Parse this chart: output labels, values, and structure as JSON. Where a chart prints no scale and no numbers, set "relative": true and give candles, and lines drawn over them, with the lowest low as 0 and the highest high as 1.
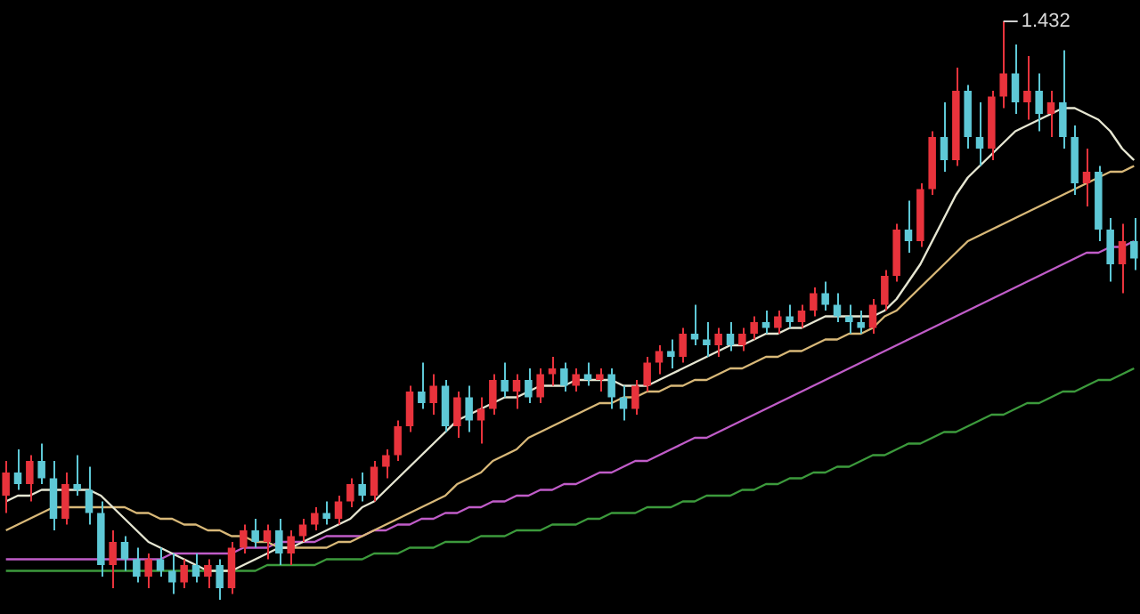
{
  "chart_data": {
    "type": "candlestick",
    "relative": true,
    "legend": false,
    "marker": "none",
    "categories": [
      null,
      null,
      null,
      null,
      null,
      null,
      null,
      null,
      null,
      null,
      null,
      null,
      null,
      null,
      null,
      null,
      null,
      null,
      null,
      null,
      null,
      null,
      null,
      null,
      null,
      null,
      null,
      null,
      null,
      null,
      null,
      null,
      null,
      null,
      null,
      null,
      null,
      null,
      null,
      null,
      null,
      null,
      null,
      null,
      null,
      null,
      null,
      null,
      null,
      null,
      null,
      null,
      null,
      null,
      null,
      null,
      null,
      null,
      null,
      null,
      null,
      null,
      null,
      null,
      null,
      null,
      null,
      null,
      null,
      null,
      null,
      null,
      null,
      null,
      null,
      null,
      null,
      null,
      null,
      null,
      null,
      null,
      null,
      null,
      null,
      null,
      null,
      null,
      null,
      null,
      null,
      null,
      null,
      null,
      null,
      null
    ],
    "ohlc": [
      [
        0.18,
        0.24,
        0.15,
        0.22
      ],
      [
        0.22,
        0.26,
        0.19,
        0.2
      ],
      [
        0.2,
        0.25,
        0.17,
        0.24
      ],
      [
        0.24,
        0.27,
        0.2,
        0.21
      ],
      [
        0.21,
        0.24,
        0.12,
        0.14
      ],
      [
        0.14,
        0.22,
        0.13,
        0.2
      ],
      [
        0.2,
        0.25,
        0.18,
        0.19
      ],
      [
        0.19,
        0.23,
        0.13,
        0.15
      ],
      [
        0.15,
        0.17,
        0.04,
        0.06
      ],
      [
        0.06,
        0.12,
        0.02,
        0.1
      ],
      [
        0.1,
        0.11,
        0.05,
        0.07
      ],
      [
        0.07,
        0.09,
        0.03,
        0.04
      ],
      [
        0.04,
        0.08,
        0.02,
        0.07
      ],
      [
        0.07,
        0.09,
        0.04,
        0.05
      ],
      [
        0.05,
        0.08,
        0.01,
        0.03
      ],
      [
        0.03,
        0.07,
        0.02,
        0.06
      ],
      [
        0.06,
        0.08,
        0.03,
        0.04
      ],
      [
        0.04,
        0.07,
        0.02,
        0.06
      ],
      [
        0.06,
        0.07,
        0.0,
        0.02
      ],
      [
        0.02,
        0.1,
        0.01,
        0.09
      ],
      [
        0.09,
        0.13,
        0.08,
        0.12
      ],
      [
        0.12,
        0.14,
        0.09,
        0.1
      ],
      [
        0.1,
        0.13,
        0.07,
        0.12
      ],
      [
        0.12,
        0.14,
        0.06,
        0.08
      ],
      [
        0.08,
        0.12,
        0.06,
        0.11
      ],
      [
        0.11,
        0.14,
        0.1,
        0.13
      ],
      [
        0.13,
        0.16,
        0.12,
        0.15
      ],
      [
        0.15,
        0.17,
        0.13,
        0.14
      ],
      [
        0.14,
        0.18,
        0.13,
        0.17
      ],
      [
        0.17,
        0.21,
        0.16,
        0.2
      ],
      [
        0.2,
        0.22,
        0.17,
        0.18
      ],
      [
        0.18,
        0.24,
        0.17,
        0.23
      ],
      [
        0.23,
        0.26,
        0.21,
        0.25
      ],
      [
        0.25,
        0.31,
        0.24,
        0.3
      ],
      [
        0.3,
        0.37,
        0.29,
        0.36
      ],
      [
        0.36,
        0.41,
        0.33,
        0.34
      ],
      [
        0.34,
        0.39,
        0.32,
        0.37
      ],
      [
        0.37,
        0.38,
        0.29,
        0.3
      ],
      [
        0.3,
        0.36,
        0.28,
        0.35
      ],
      [
        0.35,
        0.37,
        0.29,
        0.31
      ],
      [
        0.31,
        0.35,
        0.27,
        0.33
      ],
      [
        0.33,
        0.39,
        0.32,
        0.38
      ],
      [
        0.38,
        0.41,
        0.35,
        0.36
      ],
      [
        0.36,
        0.39,
        0.33,
        0.38
      ],
      [
        0.38,
        0.4,
        0.34,
        0.35
      ],
      [
        0.35,
        0.4,
        0.34,
        0.39
      ],
      [
        0.39,
        0.42,
        0.37,
        0.4
      ],
      [
        0.4,
        0.41,
        0.36,
        0.37
      ],
      [
        0.37,
        0.4,
        0.36,
        0.39
      ],
      [
        0.39,
        0.41,
        0.37,
        0.38
      ],
      [
        0.38,
        0.4,
        0.36,
        0.39
      ],
      [
        0.39,
        0.4,
        0.33,
        0.35
      ],
      [
        0.35,
        0.37,
        0.31,
        0.33
      ],
      [
        0.33,
        0.38,
        0.32,
        0.37
      ],
      [
        0.37,
        0.42,
        0.36,
        0.41
      ],
      [
        0.41,
        0.44,
        0.39,
        0.43
      ],
      [
        0.43,
        0.45,
        0.4,
        0.42
      ],
      [
        0.42,
        0.47,
        0.41,
        0.46
      ],
      [
        0.46,
        0.51,
        0.44,
        0.45
      ],
      [
        0.45,
        0.48,
        0.42,
        0.44
      ],
      [
        0.44,
        0.47,
        0.42,
        0.46
      ],
      [
        0.46,
        0.48,
        0.43,
        0.44
      ],
      [
        0.44,
        0.47,
        0.43,
        0.46
      ],
      [
        0.46,
        0.49,
        0.45,
        0.48
      ],
      [
        0.48,
        0.5,
        0.46,
        0.47
      ],
      [
        0.47,
        0.5,
        0.46,
        0.49
      ],
      [
        0.49,
        0.51,
        0.47,
        0.48
      ],
      [
        0.48,
        0.51,
        0.47,
        0.5
      ],
      [
        0.5,
        0.54,
        0.49,
        0.53
      ],
      [
        0.53,
        0.55,
        0.5,
        0.51
      ],
      [
        0.51,
        0.53,
        0.48,
        0.49
      ],
      [
        0.49,
        0.51,
        0.46,
        0.48
      ],
      [
        0.48,
        0.5,
        0.46,
        0.47
      ],
      [
        0.47,
        0.52,
        0.46,
        0.51
      ],
      [
        0.51,
        0.57,
        0.5,
        0.56
      ],
      [
        0.56,
        0.65,
        0.55,
        0.64
      ],
      [
        0.64,
        0.69,
        0.6,
        0.62
      ],
      [
        0.62,
        0.72,
        0.61,
        0.71
      ],
      [
        0.71,
        0.81,
        0.7,
        0.8
      ],
      [
        0.8,
        0.86,
        0.74,
        0.76
      ],
      [
        0.76,
        0.92,
        0.75,
        0.88
      ],
      [
        0.88,
        0.89,
        0.78,
        0.8
      ],
      [
        0.8,
        0.86,
        0.75,
        0.78
      ],
      [
        0.78,
        0.88,
        0.76,
        0.87
      ],
      [
        0.87,
        1.0,
        0.85,
        0.91
      ],
      [
        0.91,
        0.96,
        0.84,
        0.86
      ],
      [
        0.86,
        0.94,
        0.83,
        0.88
      ],
      [
        0.88,
        0.91,
        0.81,
        0.84
      ],
      [
        0.84,
        0.88,
        0.8,
        0.86
      ],
      [
        0.86,
        0.95,
        0.78,
        0.8
      ],
      [
        0.8,
        0.82,
        0.7,
        0.72
      ],
      [
        0.72,
        0.78,
        0.68,
        0.74
      ],
      [
        0.74,
        0.75,
        0.62,
        0.64
      ],
      [
        0.64,
        0.66,
        0.55,
        0.58
      ],
      [
        0.58,
        0.65,
        0.53,
        0.62
      ],
      [
        0.62,
        0.66,
        0.57,
        0.59
      ]
    ],
    "colors": [
      "#e8333c",
      "#5ec8d6",
      "#e8333c",
      "#5ec8d6",
      "#5ec8d6",
      "#e8333c",
      "#5ec8d6",
      "#5ec8d6",
      "#5ec8d6",
      "#e8333c",
      "#5ec8d6",
      "#5ec8d6",
      "#e8333c",
      "#5ec8d6",
      "#5ec8d6",
      "#e8333c",
      "#5ec8d6",
      "#e8333c",
      "#5ec8d6",
      "#e8333c",
      "#e8333c",
      "#5ec8d6",
      "#e8333c",
      "#5ec8d6",
      "#e8333c",
      "#e8333c",
      "#e8333c",
      "#5ec8d6",
      "#e8333c",
      "#e8333c",
      "#5ec8d6",
      "#e8333c",
      "#e8333c",
      "#e8333c",
      "#e8333c",
      "#5ec8d6",
      "#e8333c",
      "#5ec8d6",
      "#e8333c",
      "#5ec8d6",
      "#e8333c",
      "#e8333c",
      "#5ec8d6",
      "#e8333c",
      "#5ec8d6",
      "#e8333c",
      "#e8333c",
      "#5ec8d6",
      "#e8333c",
      "#5ec8d6",
      "#e8333c",
      "#5ec8d6",
      "#5ec8d6",
      "#e8333c",
      "#e8333c",
      "#e8333c",
      "#5ec8d6",
      "#e8333c",
      "#5ec8d6",
      "#5ec8d6",
      "#e8333c",
      "#5ec8d6",
      "#e8333c",
      "#e8333c",
      "#5ec8d6",
      "#e8333c",
      "#5ec8d6",
      "#e8333c",
      "#e8333c",
      "#5ec8d6",
      "#5ec8d6",
      "#5ec8d6",
      "#5ec8d6",
      "#e8333c",
      "#e8333c",
      "#e8333c",
      "#5ec8d6",
      "#e8333c",
      "#e8333c",
      "#5ec8d6",
      "#e8333c",
      "#5ec8d6",
      "#5ec8d6",
      "#e8333c",
      "#e8333c",
      "#5ec8d6",
      "#e8333c",
      "#5ec8d6",
      "#e8333c",
      "#5ec8d6",
      "#5ec8d6",
      "#e8333c",
      "#5ec8d6",
      "#5ec8d6",
      "#e8333c",
      "#5ec8d6"
    ],
    "series": [
      {
        "type": "line",
        "color": "#e6e6d2",
        "values": [
          0.17,
          0.18,
          0.18,
          0.19,
          0.19,
          0.19,
          0.19,
          0.19,
          0.18,
          0.16,
          0.14,
          0.12,
          0.1,
          0.09,
          0.08,
          0.07,
          0.06,
          0.05,
          0.05,
          0.05,
          0.06,
          0.07,
          0.08,
          0.09,
          0.09,
          0.1,
          0.11,
          0.12,
          0.13,
          0.14,
          0.16,
          0.17,
          0.19,
          0.21,
          0.23,
          0.25,
          0.27,
          0.29,
          0.31,
          0.32,
          0.33,
          0.34,
          0.35,
          0.35,
          0.36,
          0.37,
          0.37,
          0.37,
          0.38,
          0.38,
          0.38,
          0.38,
          0.37,
          0.37,
          0.37,
          0.38,
          0.39,
          0.4,
          0.41,
          0.42,
          0.43,
          0.44,
          0.44,
          0.45,
          0.46,
          0.46,
          0.47,
          0.47,
          0.48,
          0.49,
          0.49,
          0.49,
          0.49,
          0.49,
          0.5,
          0.52,
          0.55,
          0.58,
          0.62,
          0.66,
          0.7,
          0.73,
          0.75,
          0.77,
          0.79,
          0.81,
          0.82,
          0.83,
          0.84,
          0.85,
          0.85,
          0.84,
          0.83,
          0.81,
          0.78,
          0.76
        ]
      },
      {
        "type": "line",
        "color": "#d8b878",
        "values": [
          0.12,
          0.13,
          0.14,
          0.15,
          0.16,
          0.16,
          0.16,
          0.16,
          0.16,
          0.16,
          0.16,
          0.15,
          0.15,
          0.14,
          0.14,
          0.13,
          0.13,
          0.12,
          0.12,
          0.11,
          0.11,
          0.1,
          0.1,
          0.09,
          0.09,
          0.09,
          0.09,
          0.09,
          0.1,
          0.1,
          0.11,
          0.12,
          0.13,
          0.14,
          0.15,
          0.16,
          0.17,
          0.18,
          0.2,
          0.21,
          0.22,
          0.24,
          0.25,
          0.26,
          0.28,
          0.29,
          0.3,
          0.31,
          0.32,
          0.33,
          0.34,
          0.34,
          0.35,
          0.35,
          0.36,
          0.36,
          0.37,
          0.37,
          0.38,
          0.38,
          0.39,
          0.4,
          0.4,
          0.41,
          0.42,
          0.42,
          0.43,
          0.43,
          0.44,
          0.45,
          0.45,
          0.46,
          0.46,
          0.47,
          0.49,
          0.5,
          0.52,
          0.54,
          0.56,
          0.58,
          0.6,
          0.62,
          0.63,
          0.64,
          0.65,
          0.66,
          0.67,
          0.68,
          0.69,
          0.7,
          0.71,
          0.72,
          0.73,
          0.74,
          0.74,
          0.75
        ]
      },
      {
        "type": "line",
        "color": "#c05cc8",
        "values": [
          0.07,
          0.07,
          0.07,
          0.07,
          0.07,
          0.07,
          0.07,
          0.07,
          0.07,
          0.07,
          0.07,
          0.07,
          0.07,
          0.07,
          0.08,
          0.08,
          0.08,
          0.08,
          0.08,
          0.08,
          0.09,
          0.09,
          0.09,
          0.1,
          0.1,
          0.1,
          0.1,
          0.11,
          0.11,
          0.11,
          0.11,
          0.12,
          0.12,
          0.13,
          0.13,
          0.14,
          0.14,
          0.15,
          0.15,
          0.16,
          0.16,
          0.17,
          0.17,
          0.18,
          0.18,
          0.19,
          0.19,
          0.2,
          0.2,
          0.21,
          0.22,
          0.22,
          0.23,
          0.24,
          0.24,
          0.25,
          0.26,
          0.27,
          0.28,
          0.28,
          0.29,
          0.3,
          0.31,
          0.32,
          0.33,
          0.34,
          0.35,
          0.36,
          0.37,
          0.38,
          0.39,
          0.4,
          0.41,
          0.42,
          0.43,
          0.44,
          0.45,
          0.46,
          0.47,
          0.48,
          0.49,
          0.5,
          0.51,
          0.52,
          0.53,
          0.54,
          0.55,
          0.56,
          0.57,
          0.58,
          0.59,
          0.6,
          0.6,
          0.61,
          0.61,
          0.62
        ]
      },
      {
        "type": "line",
        "color": "#3c9a3c",
        "values": [
          0.05,
          0.05,
          0.05,
          0.05,
          0.05,
          0.05,
          0.05,
          0.05,
          0.05,
          0.05,
          0.05,
          0.05,
          0.05,
          0.05,
          0.05,
          0.05,
          0.05,
          0.05,
          0.05,
          0.05,
          0.05,
          0.05,
          0.06,
          0.06,
          0.06,
          0.06,
          0.06,
          0.07,
          0.07,
          0.07,
          0.07,
          0.08,
          0.08,
          0.08,
          0.09,
          0.09,
          0.09,
          0.1,
          0.1,
          0.1,
          0.11,
          0.11,
          0.11,
          0.12,
          0.12,
          0.12,
          0.13,
          0.13,
          0.13,
          0.14,
          0.14,
          0.15,
          0.15,
          0.15,
          0.16,
          0.16,
          0.16,
          0.17,
          0.17,
          0.18,
          0.18,
          0.18,
          0.19,
          0.19,
          0.2,
          0.2,
          0.21,
          0.21,
          0.22,
          0.22,
          0.23,
          0.23,
          0.24,
          0.25,
          0.25,
          0.26,
          0.27,
          0.27,
          0.28,
          0.29,
          0.29,
          0.3,
          0.31,
          0.32,
          0.32,
          0.33,
          0.34,
          0.34,
          0.35,
          0.36,
          0.36,
          0.37,
          0.38,
          0.38,
          0.39,
          0.4
        ]
      }
    ],
    "annotations": [
      "1.432"
    ]
  }
}
